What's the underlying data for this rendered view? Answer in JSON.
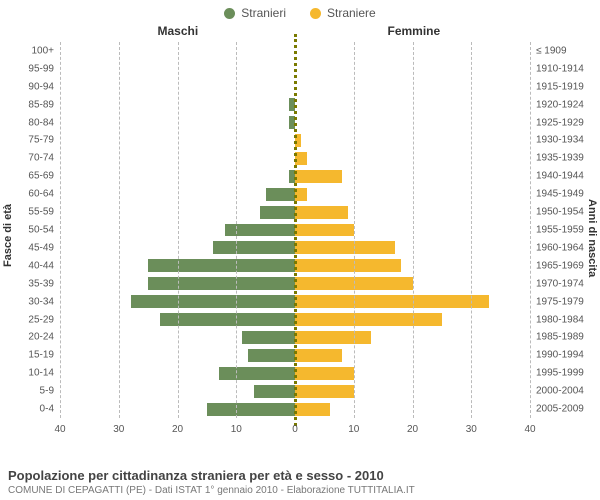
{
  "legend": {
    "male": "Stranieri",
    "female": "Straniere"
  },
  "colors": {
    "male": "#6b8e5a",
    "female": "#f5b82e",
    "grid": "#bbbbbb",
    "center": "#7a7a00",
    "text": "#555555",
    "background": "#ffffff"
  },
  "headers": {
    "left": "Maschi",
    "right": "Femmine"
  },
  "axis_labels": {
    "left": "Fasce di età",
    "right": "Anni di nascita"
  },
  "x_label": "",
  "xlim": 40,
  "xticks_left": [
    40,
    30,
    20,
    10,
    0
  ],
  "xticks_right": [
    0,
    10,
    20,
    30,
    40
  ],
  "rows": [
    {
      "age": "100+",
      "year": "≤ 1909",
      "m": 0,
      "f": 0
    },
    {
      "age": "95-99",
      "year": "1910-1914",
      "m": 0,
      "f": 0
    },
    {
      "age": "90-94",
      "year": "1915-1919",
      "m": 0,
      "f": 0
    },
    {
      "age": "85-89",
      "year": "1920-1924",
      "m": 1,
      "f": 0
    },
    {
      "age": "80-84",
      "year": "1925-1929",
      "m": 1,
      "f": 0
    },
    {
      "age": "75-79",
      "year": "1930-1934",
      "m": 0,
      "f": 1
    },
    {
      "age": "70-74",
      "year": "1935-1939",
      "m": 0,
      "f": 2
    },
    {
      "age": "65-69",
      "year": "1940-1944",
      "m": 1,
      "f": 8
    },
    {
      "age": "60-64",
      "year": "1945-1949",
      "m": 5,
      "f": 2
    },
    {
      "age": "55-59",
      "year": "1950-1954",
      "m": 6,
      "f": 9
    },
    {
      "age": "50-54",
      "year": "1955-1959",
      "m": 12,
      "f": 10
    },
    {
      "age": "45-49",
      "year": "1960-1964",
      "m": 14,
      "f": 17
    },
    {
      "age": "40-44",
      "year": "1965-1969",
      "m": 25,
      "f": 18
    },
    {
      "age": "35-39",
      "year": "1970-1974",
      "m": 25,
      "f": 20
    },
    {
      "age": "30-34",
      "year": "1975-1979",
      "m": 28,
      "f": 33
    },
    {
      "age": "25-29",
      "year": "1980-1984",
      "m": 23,
      "f": 25
    },
    {
      "age": "20-24",
      "year": "1985-1989",
      "m": 9,
      "f": 13
    },
    {
      "age": "15-19",
      "year": "1990-1994",
      "m": 8,
      "f": 8
    },
    {
      "age": "10-14",
      "year": "1995-1999",
      "m": 13,
      "f": 10
    },
    {
      "age": "5-9",
      "year": "2000-2004",
      "m": 7,
      "f": 10
    },
    {
      "age": "0-4",
      "year": "2005-2009",
      "m": 15,
      "f": 6
    }
  ],
  "title": "Popolazione per cittadinanza straniera per età e sesso - 2010",
  "subtitle": "COMUNE DI CEPAGATTI (PE) - Dati ISTAT 1° gennaio 2010 - Elaborazione TUTTITALIA.IT",
  "fontsize": {
    "title": 13,
    "subtitle": 10,
    "labels": 10,
    "axis": 11,
    "legend": 12
  }
}
